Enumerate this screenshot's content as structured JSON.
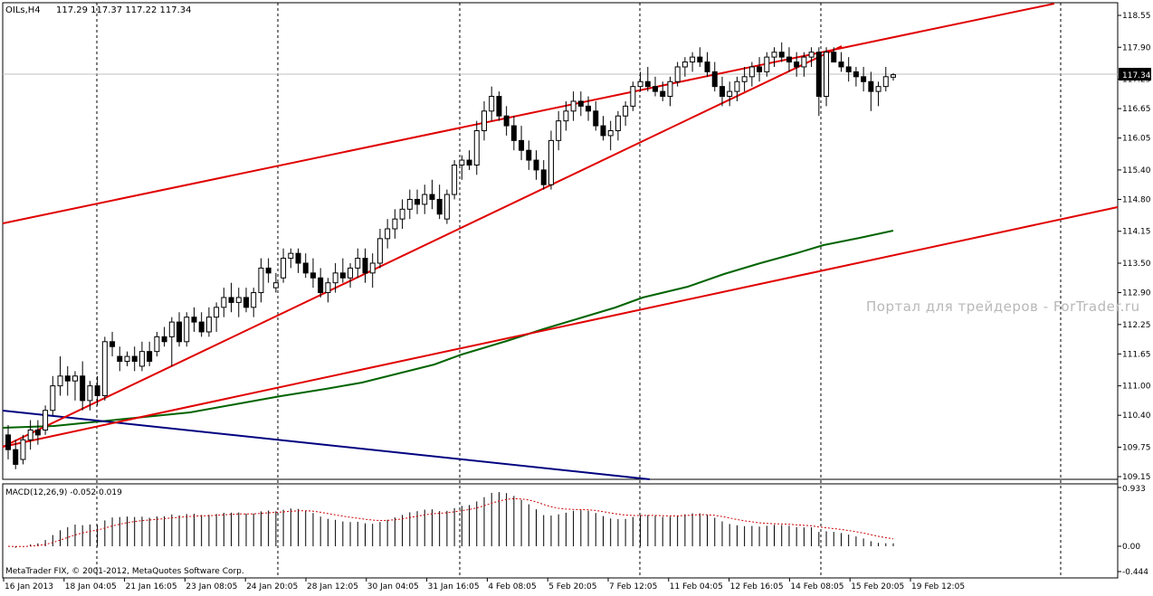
{
  "header": {
    "symbol": "OILs,H4",
    "ohlc": "117.29 117.37 117.22 117.34"
  },
  "watermark": "Портал для трейдеров - ForTrader.ru",
  "macd": {
    "label": "MACD(12,26,9) -0.052 0.019",
    "axis": [
      "0.933",
      "0.00",
      "-0.444"
    ]
  },
  "copyright": "MetaTrader FIX, © 2001-2012, MetaQuotes Software Corp.",
  "colors": {
    "channel": "#e00000",
    "moving_average": "#006400",
    "trendline_down": "#000080",
    "signal": "#cc0000",
    "current_price_bg": "#000000",
    "grid": "#000000"
  },
  "chart_data": {
    "type": "candlestick",
    "timeframe": "H4",
    "ylim": [
      109.15,
      118.55
    ],
    "current_price": "117.34",
    "price_ticks": [
      "118.55",
      "117.90",
      "117.25",
      "116.65",
      "116.05",
      "115.40",
      "114.80",
      "114.15",
      "113.50",
      "112.90",
      "112.25",
      "111.65",
      "111.00",
      "110.40",
      "109.75",
      "109.15"
    ],
    "time_ticks": [
      "16 Jan 2013",
      "18 Jan 04:05",
      "21 Jan 16:05",
      "23 Jan 08:05",
      "24 Jan 20:05",
      "28 Jan 12:05",
      "30 Jan 04:05",
      "31 Jan 16:05",
      "4 Feb 08:05",
      "5 Feb 20:05",
      "7 Feb 12:05",
      "11 Feb 04:05",
      "12 Feb 16:05",
      "14 Feb 08:05",
      "15 Feb 20:05",
      "19 Feb 12:05"
    ],
    "candles": [
      [
        110.0,
        110.2,
        109.5,
        109.7
      ],
      [
        109.7,
        109.9,
        109.3,
        109.4
      ],
      [
        109.5,
        110.0,
        109.4,
        109.9
      ],
      [
        109.9,
        110.3,
        109.7,
        110.1
      ],
      [
        110.1,
        110.3,
        109.8,
        110.0
      ],
      [
        110.1,
        110.6,
        110.0,
        110.5
      ],
      [
        110.5,
        111.2,
        110.4,
        111.0
      ],
      [
        111.0,
        111.6,
        110.8,
        111.2
      ],
      [
        111.2,
        111.4,
        110.8,
        111.1
      ],
      [
        111.1,
        111.3,
        110.7,
        111.2
      ],
      [
        111.2,
        111.5,
        110.5,
        110.7
      ],
      [
        110.7,
        111.1,
        110.5,
        111.0
      ],
      [
        111.0,
        111.2,
        110.6,
        110.8
      ],
      [
        110.8,
        112.0,
        110.7,
        111.9
      ],
      [
        111.9,
        112.1,
        111.6,
        111.8
      ],
      [
        111.6,
        111.8,
        111.3,
        111.5
      ],
      [
        111.5,
        111.7,
        111.4,
        111.6
      ],
      [
        111.6,
        111.8,
        111.3,
        111.5
      ],
      [
        111.4,
        111.9,
        111.3,
        111.7
      ],
      [
        111.7,
        111.9,
        111.4,
        111.5
      ],
      [
        111.7,
        112.1,
        111.6,
        112.0
      ],
      [
        112.0,
        112.2,
        111.8,
        111.9
      ],
      [
        112.0,
        112.4,
        111.4,
        112.3
      ],
      [
        112.3,
        112.5,
        111.8,
        111.9
      ],
      [
        111.9,
        112.5,
        111.8,
        112.4
      ],
      [
        112.4,
        112.6,
        112.1,
        112.3
      ],
      [
        112.3,
        112.5,
        112.0,
        112.1
      ],
      [
        112.1,
        112.6,
        112.0,
        112.4
      ],
      [
        112.4,
        112.7,
        112.1,
        112.6
      ],
      [
        112.6,
        113.0,
        112.4,
        112.8
      ],
      [
        112.8,
        113.1,
        112.5,
        112.7
      ],
      [
        112.7,
        113.0,
        112.4,
        112.8
      ],
      [
        112.8,
        113.0,
        112.5,
        112.6
      ],
      [
        112.6,
        113.0,
        112.4,
        112.9
      ],
      [
        112.9,
        113.6,
        112.7,
        113.4
      ],
      [
        113.4,
        113.6,
        113.1,
        113.3
      ],
      [
        113.0,
        113.3,
        112.9,
        113.1
      ],
      [
        113.2,
        113.8,
        113.1,
        113.6
      ],
      [
        113.6,
        113.8,
        113.4,
        113.7
      ],
      [
        113.7,
        113.8,
        113.3,
        113.5
      ],
      [
        113.5,
        113.7,
        113.2,
        113.3
      ],
      [
        113.3,
        113.6,
        113.0,
        113.2
      ],
      [
        113.2,
        113.4,
        112.8,
        112.9
      ],
      [
        112.9,
        113.2,
        112.7,
        113.1
      ],
      [
        113.1,
        113.5,
        112.9,
        113.3
      ],
      [
        113.3,
        113.6,
        113.1,
        113.2
      ],
      [
        113.2,
        113.5,
        113.0,
        113.4
      ],
      [
        113.4,
        113.8,
        113.2,
        113.6
      ],
      [
        113.6,
        113.8,
        113.1,
        113.3
      ],
      [
        113.3,
        113.7,
        113.0,
        113.5
      ],
      [
        113.5,
        114.2,
        113.4,
        114.0
      ],
      [
        114.0,
        114.4,
        113.8,
        114.2
      ],
      [
        114.2,
        114.6,
        114.0,
        114.4
      ],
      [
        114.4,
        114.8,
        114.2,
        114.6
      ],
      [
        114.6,
        115.0,
        114.4,
        114.8
      ],
      [
        114.8,
        115.0,
        114.5,
        114.7
      ],
      [
        114.7,
        115.1,
        114.5,
        114.9
      ],
      [
        114.9,
        115.2,
        114.6,
        114.8
      ],
      [
        114.8,
        115.1,
        114.4,
        114.5
      ],
      [
        114.4,
        115.0,
        114.3,
        114.9
      ],
      [
        114.9,
        115.6,
        114.8,
        115.5
      ],
      [
        115.5,
        115.7,
        115.2,
        115.6
      ],
      [
        115.6,
        115.8,
        115.4,
        115.5
      ],
      [
        115.5,
        116.4,
        115.3,
        116.2
      ],
      [
        116.2,
        116.8,
        116.0,
        116.6
      ],
      [
        116.6,
        117.1,
        116.4,
        116.9
      ],
      [
        116.9,
        117.0,
        116.4,
        116.5
      ],
      [
        116.5,
        116.7,
        116.1,
        116.3
      ],
      [
        116.3,
        116.5,
        115.8,
        116.0
      ],
      [
        116.0,
        116.3,
        115.6,
        115.8
      ],
      [
        115.8,
        116.0,
        115.4,
        115.6
      ],
      [
        115.6,
        115.8,
        115.2,
        115.4
      ],
      [
        115.4,
        115.6,
        115.0,
        115.1
      ],
      [
        115.1,
        116.2,
        115.0,
        116.0
      ],
      [
        116.0,
        116.6,
        115.8,
        116.4
      ],
      [
        116.4,
        116.8,
        116.2,
        116.6
      ],
      [
        116.6,
        117.0,
        116.4,
        116.8
      ],
      [
        116.8,
        117.0,
        116.5,
        116.7
      ],
      [
        116.7,
        116.9,
        116.4,
        116.6
      ],
      [
        116.6,
        116.8,
        116.2,
        116.3
      ],
      [
        116.3,
        116.5,
        116.0,
        116.1
      ],
      [
        116.1,
        116.4,
        115.8,
        116.2
      ],
      [
        116.2,
        116.6,
        116.0,
        116.5
      ],
      [
        116.5,
        116.8,
        116.3,
        116.7
      ],
      [
        116.7,
        117.2,
        116.6,
        117.1
      ],
      [
        117.1,
        117.4,
        117.0,
        117.2
      ],
      [
        117.2,
        117.5,
        117.0,
        117.1
      ],
      [
        117.1,
        117.3,
        116.9,
        117.0
      ],
      [
        117.0,
        117.2,
        116.8,
        116.9
      ],
      [
        116.9,
        117.3,
        116.7,
        117.2
      ],
      [
        117.2,
        117.6,
        117.1,
        117.5
      ],
      [
        117.5,
        117.7,
        117.3,
        117.6
      ],
      [
        117.6,
        117.8,
        117.4,
        117.7
      ],
      [
        117.7,
        117.9,
        117.5,
        117.6
      ],
      [
        117.6,
        117.8,
        117.3,
        117.4
      ],
      [
        117.4,
        117.6,
        117.0,
        117.1
      ],
      [
        117.1,
        117.3,
        116.7,
        116.9
      ],
      [
        116.9,
        117.2,
        116.7,
        117.0
      ],
      [
        117.0,
        117.3,
        116.8,
        117.2
      ],
      [
        117.2,
        117.5,
        117.0,
        117.3
      ],
      [
        117.3,
        117.6,
        117.1,
        117.5
      ],
      [
        117.5,
        117.7,
        117.2,
        117.4
      ],
      [
        117.4,
        117.8,
        117.3,
        117.7
      ],
      [
        117.7,
        117.9,
        117.5,
        117.8
      ],
      [
        117.8,
        118.0,
        117.6,
        117.7
      ],
      [
        117.7,
        117.9,
        117.4,
        117.6
      ],
      [
        117.6,
        117.8,
        117.3,
        117.5
      ],
      [
        117.5,
        117.8,
        117.3,
        117.7
      ],
      [
        117.7,
        117.9,
        117.5,
        117.8
      ],
      [
        117.8,
        117.9,
        116.5,
        116.9
      ],
      [
        116.9,
        117.9,
        116.7,
        117.8
      ],
      [
        117.8,
        117.9,
        117.6,
        117.6
      ],
      [
        117.6,
        117.8,
        117.4,
        117.5
      ],
      [
        117.5,
        117.7,
        117.2,
        117.4
      ],
      [
        117.4,
        117.5,
        117.1,
        117.3
      ],
      [
        117.3,
        117.5,
        117.0,
        117.2
      ],
      [
        117.2,
        117.4,
        116.6,
        117.0
      ],
      [
        117.0,
        117.2,
        116.7,
        117.1
      ],
      [
        117.1,
        117.5,
        117.0,
        117.3
      ],
      [
        117.29,
        117.37,
        117.22,
        117.34
      ]
    ]
  }
}
